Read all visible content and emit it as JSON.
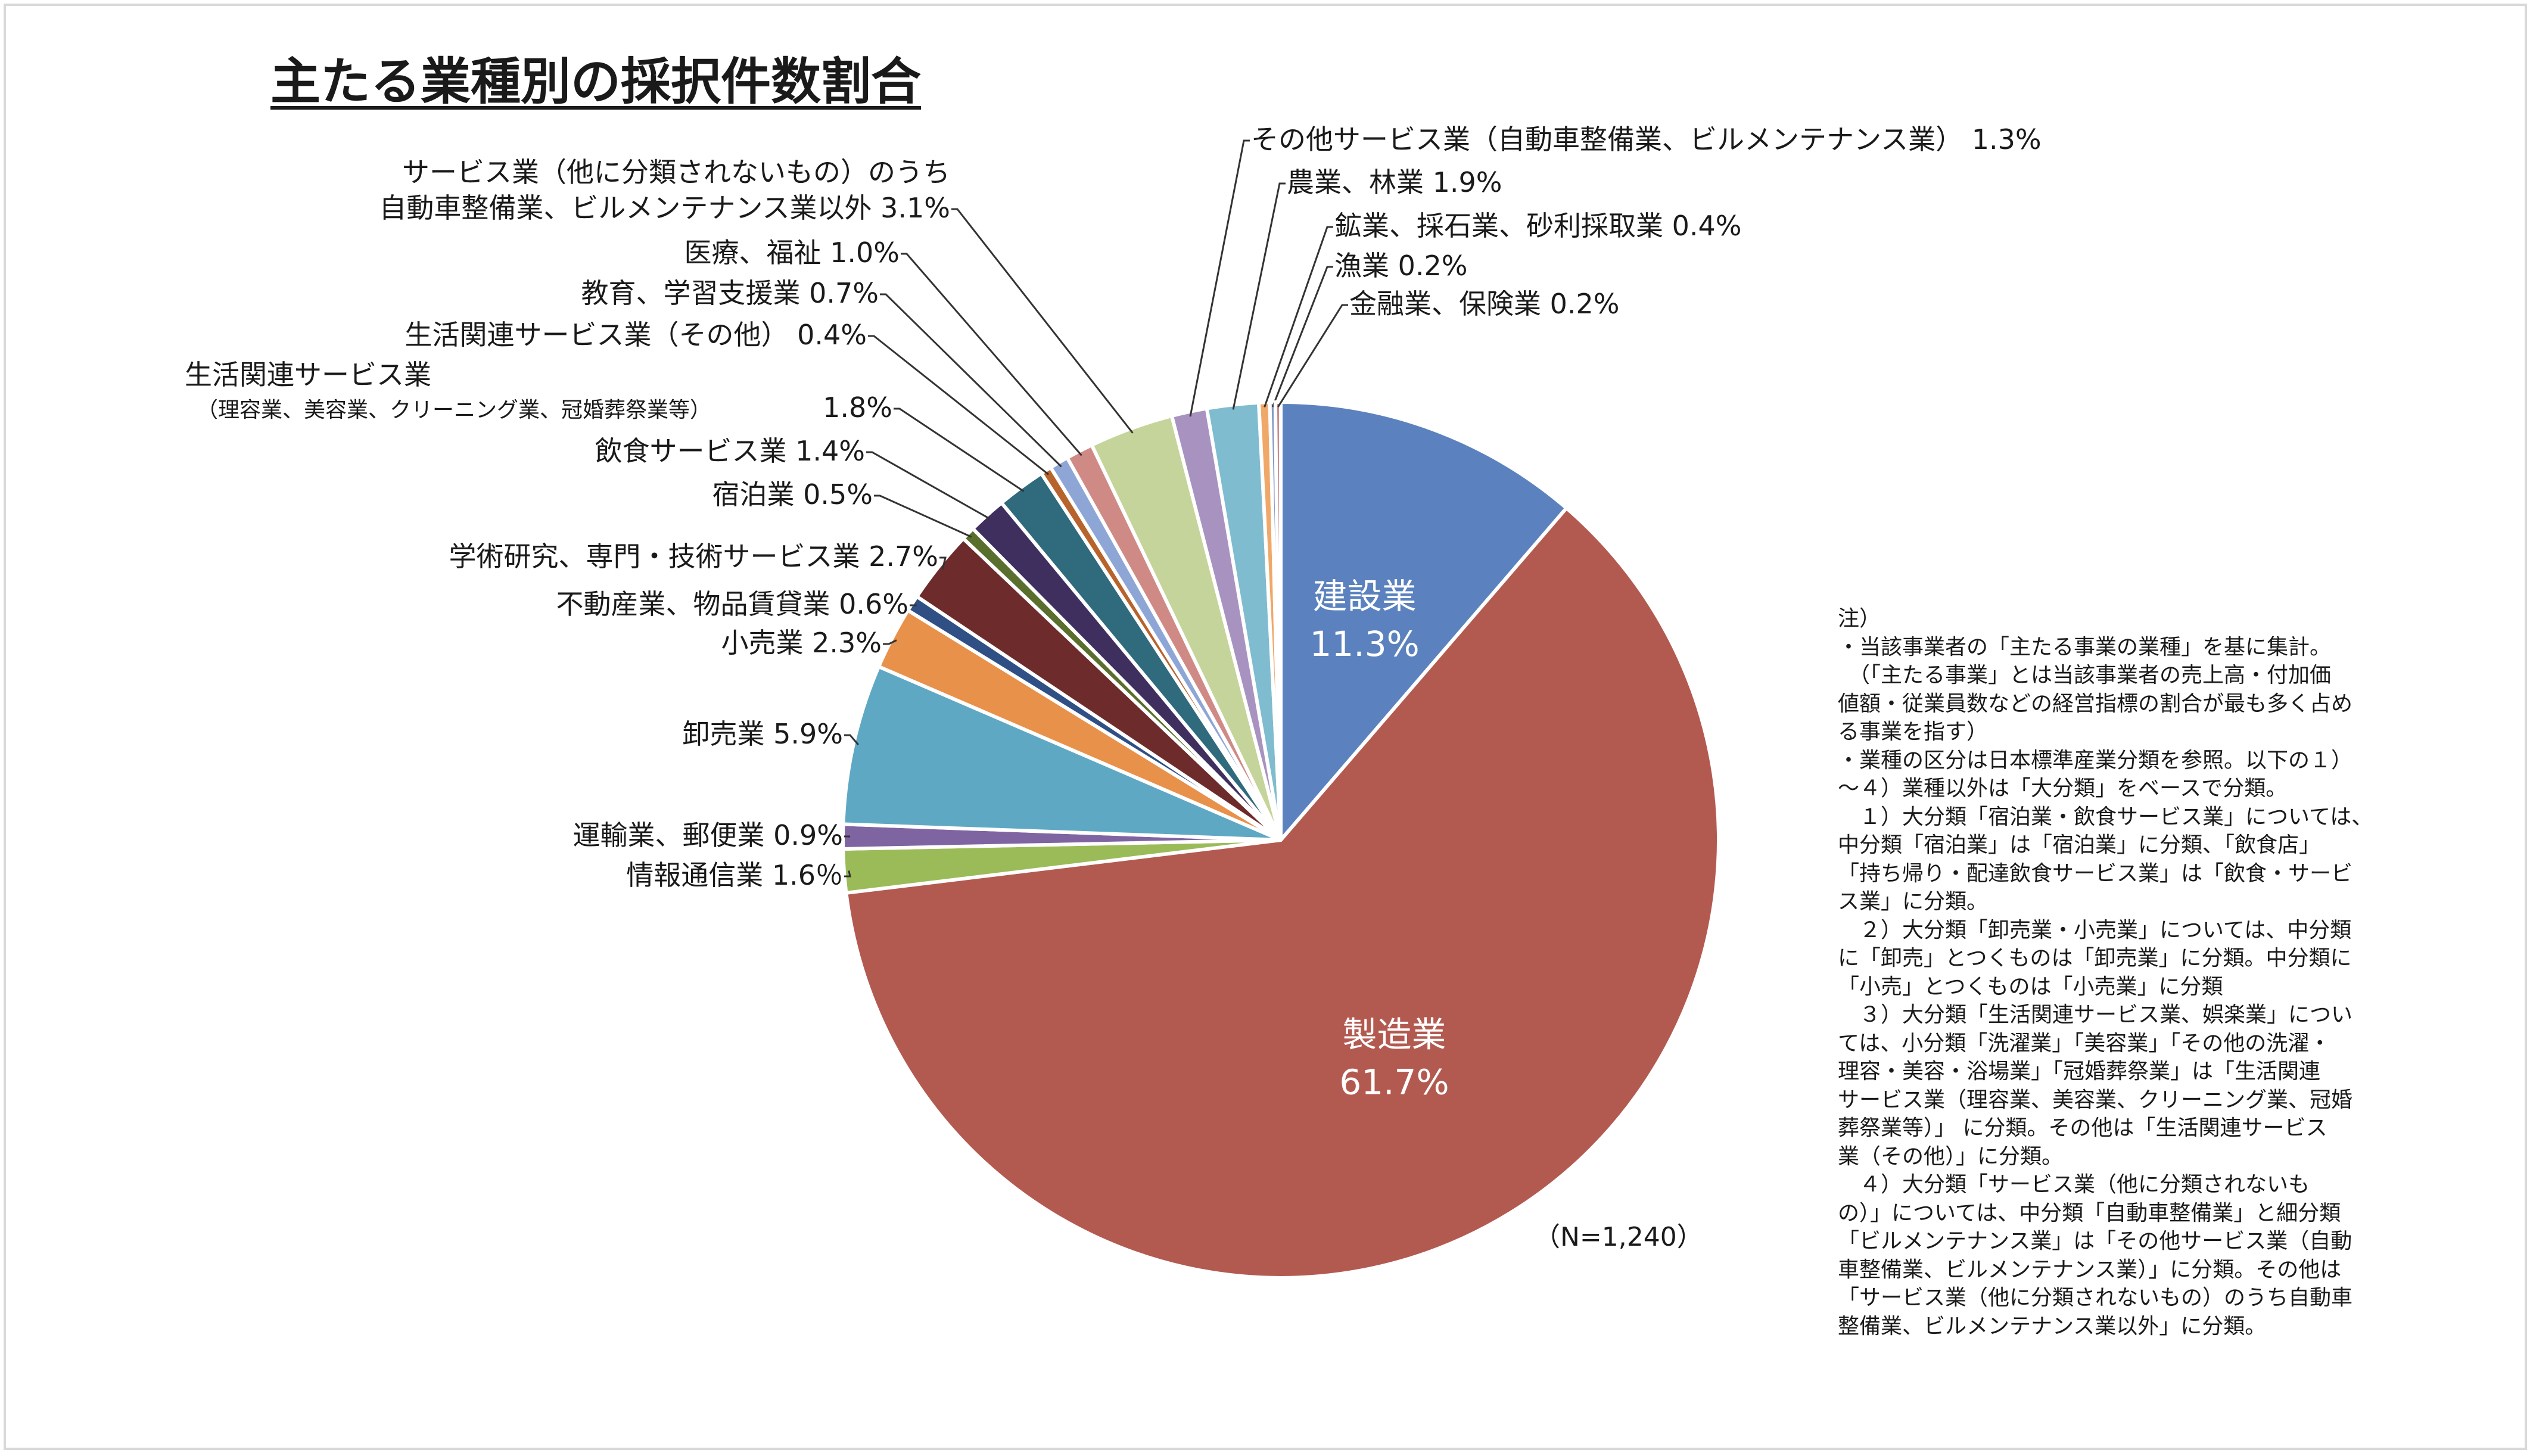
{
  "chart_data": {
    "type": "pie",
    "title": "主たる業種別の採択件数割合",
    "n_label": "（N=1,240）",
    "start_angle_deg": 0,
    "direction": "clockwise",
    "slices": [
      {
        "name": "建設業",
        "value": 11.3,
        "label": "建設業",
        "value_text": "11.3%",
        "color": "#5b82be",
        "inside": true
      },
      {
        "name": "製造業",
        "value": 61.7,
        "label": "製造業",
        "value_text": "61.7%",
        "color": "#b35a50",
        "inside": true
      },
      {
        "name": "情報通信業",
        "value": 1.6,
        "label": "情報通信業 1.6％",
        "color": "#9bbb59"
      },
      {
        "name": "運輸業、郵便業",
        "value": 0.9,
        "label": "運輸業、郵便業 0.9%",
        "color": "#7f64a2"
      },
      {
        "name": "卸売業",
        "value": 5.9,
        "label": "卸売業 5.9%",
        "color": "#5fa8c4"
      },
      {
        "name": "小売業",
        "value": 2.3,
        "label": "小売業 2.3%",
        "color": "#e8914b"
      },
      {
        "name": "不動産業、物品賃貸業",
        "value": 0.6,
        "label": "不動産業、物品賃貸業 0.6%",
        "color": "#2f4f85"
      },
      {
        "name": "学術研究、専門・技術サービス業",
        "value": 2.7,
        "label": "学術研究、専門・技術サービス業 2.7%",
        "color": "#6e2b2b"
      },
      {
        "name": "宿泊業",
        "value": 0.5,
        "label": "宿泊業 0.5%",
        "color": "#5a6e2d"
      },
      {
        "name": "飲食サービス業",
        "value": 1.4,
        "label": "飲食サービス業 1.4%",
        "color": "#3f2f5e"
      },
      {
        "name": "生活関連サービス業（理容業、美容業、クリーニング業、冠婚葬祭業等）",
        "value": 1.8,
        "label": "生活関連サービス業",
        "label_sub": "（理容業、美容業、クリーニング業、冠婚葬祭業等）",
        "value_text": "1.8%",
        "color": "#2f6a7d"
      },
      {
        "name": "生活関連サービス業（その他）",
        "value": 0.4,
        "label": "生活関連サービス業（その他） 0.4%",
        "color": "#b7632c"
      },
      {
        "name": "教育、学習支援業",
        "value": 0.7,
        "label": "教育、学習支援業 0.7%",
        "color": "#8ea6d6"
      },
      {
        "name": "医療、福祉",
        "value": 1.0,
        "label": "医療、福祉 1.0%",
        "color": "#d08a86"
      },
      {
        "name": "サービス業（他に分類されないもの）のうち自動車整備業、ビルメンテナンス業以外",
        "value": 3.1,
        "label": "サービス業（他に分類されないもの）のうち",
        "label2": "自動車整備業、ビルメンテナンス業以外 3.1%",
        "color": "#c5d49a"
      },
      {
        "name": "その他サービス業（自動車整備業、ビルメンテナンス業）",
        "value": 1.3,
        "label": "その他サービス業（自動車整備業、ビルメンテナンス業） 1.3%",
        "color": "#a893c0"
      },
      {
        "name": "農業、林業",
        "value": 1.9,
        "label": "農業、林業 1.9%",
        "color": "#7fbccf"
      },
      {
        "name": "鉱業、採石業、砂利採取業",
        "value": 0.4,
        "label": "鉱業、採石業、砂利採取業 0.4%",
        "color": "#f0a868"
      },
      {
        "name": "漁業",
        "value": 0.2,
        "label": "漁業 0.2%",
        "color": "#8599c7"
      },
      {
        "name": "金融業、保険業",
        "value": 0.2,
        "label": "金融業、保険業 0.2%",
        "color": "#c98c8a"
      }
    ]
  },
  "notes": [
    "注）",
    "・当該事業者の「主たる事業の業種」を基に集計。",
    "　（「主たる事業」とは当該事業者の売上高・付加価",
    "値額・従業員数などの経営指標の割合が最も多く占め",
    "る事業を指す）",
    "・業種の区分は日本標準産業分類を参照。以下の１）",
    "～４）業種以外は「大分類」をベースで分類。",
    "　１）大分類「宿泊業・飲食サービス業」については、",
    "中分類「宿泊業」は「宿泊業」に分類、「飲食店」",
    "「持ち帰り・配達飲食サービス業」は「飲食・サービ",
    "ス業」に分類。",
    "　２）大分類「卸売業・小売業」については、中分類",
    "に「卸売」とつくものは「卸売業」に分類。中分類に",
    "「小売」とつくものは「小売業」に分類",
    "　３）大分類「生活関連サービス業、娯楽業」につい",
    "ては、小分類「洗濯業」「美容業」「その他の洗濯・",
    "理容・美容・浴場業」「冠婚葬祭業」は「生活関連",
    "サービス業（理容業、美容業、クリーニング業、冠婚",
    "葬祭業等）」 に分類。その他は「生活関連サービス",
    "業（その他）」に分類。",
    "　４）大分類「サービス業（他に分類されないも",
    "の）」については、中分類「自動車整備業」と細分類",
    "「ビルメンテナンス業」は「その他サービス業（自動",
    "車整備業、ビルメンテナンス業）」に分類。その他は",
    "「サービス業（他に分類されないもの）のうち自動車",
    "整備業、ビルメンテナンス業以外」に分類。"
  ]
}
